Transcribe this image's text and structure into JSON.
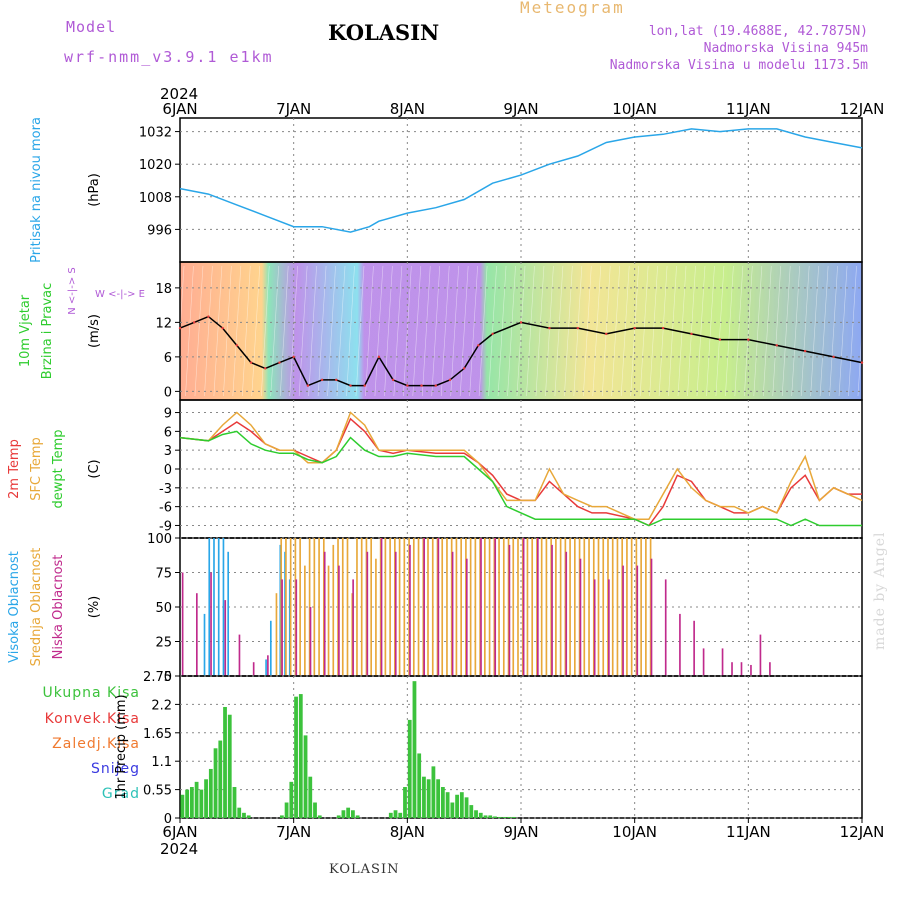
{
  "header": {
    "model_label": "Model",
    "model_name": "wrf-nmm_v3.9.1 e1km",
    "station": "KOLASIN",
    "title": "Meteogram",
    "lonlat": "lon,lat (19.4688E, 42.7875N)",
    "elevation": "Nadmorska Visina 945m",
    "elevation_model": "Nadmorska Visina u modelu 1173.5m",
    "year": "2024",
    "footer_station": "KOLASIN",
    "credit": "made by Angel"
  },
  "colors": {
    "pressure": "#2aa6e8",
    "temp_2m": "#e83a3a",
    "temp_sfc": "#e8a83a",
    "dewpoint": "#2ecc2e",
    "high_cloud": "#2aa6e8",
    "mid_cloud": "#e8a83a",
    "low_cloud": "#c02a8c",
    "total_precip": "#3cc23c",
    "conv_precip": "#e83a3a",
    "freezing_rain": "#f07a30",
    "snow": "#3a3ae0",
    "hail": "#2ec2b8",
    "wind_label": "#2ecc2e",
    "compass": "#b05ad6"
  },
  "x_axis": {
    "ticks": [
      "6JAN",
      "7JAN",
      "8JAN",
      "9JAN",
      "10JAN",
      "11JAN",
      "12JAN"
    ],
    "range_hours": [
      0,
      144
    ]
  },
  "chart_data": [
    {
      "type": "line",
      "id": "pressure",
      "ylabel_lines": [
        "Pritisak na nivou mora"
      ],
      "unit": "(hPa)",
      "ylim": [
        984,
        1037
      ],
      "yticks": [
        "996",
        "1008",
        "1020",
        "1032"
      ],
      "ytick_values": [
        996,
        1008,
        1020,
        1032
      ],
      "series": [
        {
          "x": [
            0,
            6,
            12,
            18,
            24,
            30,
            36,
            40,
            42,
            48,
            54,
            60,
            66,
            72,
            78,
            84,
            90,
            96,
            102,
            108,
            114,
            120,
            126,
            132,
            138,
            144
          ],
          "values": [
            1011,
            1009,
            1005,
            1001,
            997,
            997,
            995,
            997,
            999,
            1002,
            1004,
            1007,
            1013,
            1016,
            1020,
            1023,
            1028,
            1030,
            1031,
            1033,
            1032,
            1033,
            1033,
            1030,
            1028,
            1026
          ]
        }
      ]
    },
    {
      "type": "line",
      "id": "wind",
      "ylabel_lines": [
        "10m Vjetar",
        "Brzina i Pravac"
      ],
      "unit": "(m/s)",
      "ylim": [
        -1.5,
        22.5
      ],
      "yticks": [
        "0",
        "6",
        "12",
        "18"
      ],
      "ytick_values": [
        0,
        6,
        12,
        18
      ],
      "compass_text": "W <-|-> E",
      "compass_vertical": "N <-|-> S",
      "series": [
        {
          "x": [
            0,
            3,
            6,
            9,
            12,
            15,
            18,
            21,
            24,
            27,
            30,
            33,
            36,
            39,
            42,
            45,
            48,
            51,
            54,
            57,
            60,
            63,
            66,
            72,
            78,
            84,
            90,
            96,
            102,
            108,
            114,
            120,
            126,
            132,
            138,
            144
          ],
          "values": [
            11,
            12,
            13,
            11,
            8,
            5,
            4,
            5,
            6,
            1,
            2,
            2,
            1,
            1,
            6,
            2,
            1,
            1,
            1,
            2,
            4,
            8,
            10,
            12,
            11,
            11,
            10,
            11,
            11,
            10,
            9,
            9,
            8,
            7,
            6,
            5
          ]
        }
      ]
    },
    {
      "type": "line",
      "id": "temperature",
      "ylabel_lines": [
        "2m Temp",
        "SFC Temp",
        "dewpt Temp"
      ],
      "unit": "(C)",
      "ylim": [
        -11,
        11
      ],
      "yticks": [
        "-9",
        "-6",
        "-3",
        "0",
        "3",
        "6",
        "9"
      ],
      "ytick_values": [
        -9,
        -6,
        -3,
        0,
        3,
        6,
        9
      ],
      "series": [
        {
          "name": "2m Temp",
          "x": [
            0,
            6,
            9,
            12,
            15,
            18,
            21,
            24,
            27,
            30,
            33,
            36,
            39,
            42,
            45,
            48,
            54,
            60,
            63,
            66,
            69,
            72,
            75,
            78,
            81,
            84,
            87,
            90,
            96,
            99,
            102,
            105,
            108,
            111,
            114,
            117,
            120,
            123,
            126,
            129,
            132,
            135,
            138,
            141,
            144
          ],
          "values": [
            5,
            4.5,
            6,
            7.5,
            6,
            4,
            3,
            3,
            2,
            1,
            3,
            8,
            6,
            3,
            2.5,
            3,
            2.5,
            2.5,
            1,
            -1,
            -4,
            -5,
            -5,
            -2,
            -4,
            -6,
            -7,
            -7,
            -8,
            -9,
            -6,
            -1,
            -2,
            -5,
            -6,
            -7,
            -7,
            -6,
            -7,
            -3,
            -1,
            -5,
            -3,
            -4,
            -4
          ]
        },
        {
          "name": "SFC Temp",
          "x": [
            0,
            6,
            9,
            12,
            15,
            18,
            21,
            24,
            27,
            30,
            33,
            36,
            39,
            42,
            45,
            48,
            54,
            60,
            63,
            66,
            69,
            72,
            75,
            78,
            81,
            84,
            87,
            90,
            96,
            99,
            102,
            105,
            108,
            111,
            114,
            117,
            120,
            123,
            126,
            129,
            132,
            135,
            138,
            141,
            144
          ],
          "values": [
            5,
            4.5,
            7,
            9,
            7,
            4,
            3,
            3,
            1,
            1,
            3,
            9,
            7,
            3,
            3,
            3,
            3,
            3,
            1,
            -2,
            -5,
            -5,
            -5,
            0,
            -4,
            -5,
            -6,
            -6,
            -8,
            -8,
            -4,
            0,
            -3,
            -5,
            -6,
            -6,
            -7,
            -6,
            -7,
            -2,
            2,
            -5,
            -3,
            -4,
            -5
          ]
        },
        {
          "name": "dewpt Temp",
          "x": [
            0,
            6,
            9,
            12,
            15,
            18,
            21,
            24,
            27,
            30,
            33,
            36,
            39,
            42,
            45,
            48,
            54,
            60,
            63,
            66,
            69,
            72,
            75,
            78,
            81,
            84,
            87,
            90,
            96,
            99,
            102,
            105,
            108,
            111,
            114,
            117,
            120,
            123,
            126,
            129,
            132,
            135,
            138,
            141,
            144
          ],
          "values": [
            5,
            4.5,
            5.5,
            6,
            4,
            3,
            2.5,
            2.5,
            1.5,
            1,
            2,
            5,
            3,
            2,
            2,
            2.5,
            2,
            2,
            0,
            -2,
            -6,
            -7,
            -8,
            -8,
            -8,
            -8,
            -8,
            -8,
            -8,
            -9,
            -8,
            -8,
            -8,
            -8,
            -8,
            -8,
            -8,
            -8,
            -8,
            -9,
            -8,
            -9,
            -9,
            -9,
            -9
          ]
        }
      ]
    },
    {
      "type": "bar",
      "id": "cloud",
      "ylabel_lines": [
        "Visoka Oblacnost",
        "Srednja Oblacnost",
        "Niska Oblacnost"
      ],
      "unit": "(%)",
      "ylim": [
        0,
        100
      ],
      "yticks": [
        "0",
        "25",
        "50",
        "75",
        "100"
      ],
      "ytick_values": [
        0,
        25,
        50,
        75,
        100
      ],
      "series": [
        {
          "name": "Visoka Oblacnost",
          "x": [
            5,
            6,
            7,
            8,
            9,
            10,
            18,
            19,
            21,
            22,
            23
          ],
          "values": [
            45,
            100,
            100,
            100,
            100,
            90,
            12,
            40,
            95,
            90,
            70
          ]
        },
        {
          "name": "Srednja Oblacnost",
          "x": [
            20,
            21,
            22,
            23,
            24,
            25,
            26,
            27,
            28,
            29,
            30,
            31,
            32,
            33,
            34,
            35,
            36,
            37,
            38,
            39,
            40,
            41,
            42,
            43,
            44,
            45,
            46,
            47,
            48,
            49,
            50,
            51,
            52,
            53,
            54,
            55,
            56,
            57,
            58,
            59,
            60,
            61,
            62,
            63,
            64,
            65,
            66,
            67,
            68,
            69,
            70,
            71,
            72,
            73,
            74,
            75,
            76,
            77,
            78,
            79,
            80,
            81,
            82,
            83,
            84,
            85,
            86,
            87,
            88,
            89,
            90,
            91,
            92,
            93,
            94,
            95,
            96,
            97,
            98,
            99
          ],
          "values": [
            60,
            100,
            100,
            100,
            100,
            100,
            80,
            100,
            100,
            100,
            100,
            80,
            95,
            100,
            100,
            100,
            60,
            100,
            100,
            100,
            100,
            85,
            100,
            100,
            100,
            100,
            100,
            100,
            100,
            100,
            100,
            100,
            100,
            100,
            100,
            100,
            100,
            100,
            100,
            100,
            100,
            100,
            100,
            100,
            100,
            100,
            100,
            100,
            100,
            100,
            100,
            100,
            100,
            100,
            100,
            100,
            100,
            100,
            100,
            100,
            100,
            100,
            100,
            100,
            100,
            100,
            100,
            100,
            100,
            100,
            100,
            100,
            100,
            100,
            100,
            100,
            100,
            100,
            100,
            100
          ]
        },
        {
          "name": "Niska Oblacnost",
          "x": [
            0,
            3,
            6,
            9,
            12,
            15,
            18,
            21,
            24,
            27,
            30,
            33,
            36,
            39,
            42,
            45,
            48,
            51,
            54,
            57,
            60,
            63,
            66,
            69,
            72,
            75,
            78,
            81,
            84,
            87,
            90,
            93,
            96,
            99,
            102,
            105,
            108,
            110,
            114,
            116,
            118,
            120,
            122,
            124
          ],
          "values": [
            75,
            60,
            75,
            55,
            30,
            10,
            15,
            70,
            70,
            50,
            90,
            80,
            70,
            90,
            100,
            90,
            95,
            100,
            100,
            90,
            85,
            100,
            100,
            95,
            100,
            100,
            95,
            90,
            85,
            70,
            70,
            80,
            80,
            85,
            70,
            45,
            40,
            20,
            20,
            10,
            10,
            8,
            30,
            10
          ]
        }
      ]
    },
    {
      "type": "bar",
      "id": "precip",
      "ylabel_lines": [
        "1hr Precip (mm)"
      ],
      "unit": "(mm)",
      "ylim": [
        0,
        2.75
      ],
      "yticks": [
        "0",
        "0.55",
        "1.1",
        "1.65",
        "2.2",
        "2.75"
      ],
      "ytick_values": [
        0,
        0.55,
        1.1,
        1.65,
        2.2,
        2.75
      ],
      "legend": [
        "Ukupna Kisa",
        "Konvek.Kisa",
        "Zaledj.Kisa",
        "Snijeg",
        "Grad"
      ],
      "series": [
        {
          "name": "Ukupna Kisa",
          "x": [
            0,
            1,
            2,
            3,
            4,
            5,
            6,
            7,
            8,
            9,
            10,
            11,
            12,
            13,
            14,
            21,
            22,
            23,
            24,
            25,
            26,
            27,
            28,
            29,
            33,
            34,
            35,
            36,
            37,
            44,
            45,
            46,
            47,
            48,
            49,
            50,
            51,
            52,
            53,
            54,
            55,
            56,
            57,
            58,
            59,
            60,
            61,
            62,
            63,
            64,
            65,
            66,
            67,
            68,
            69,
            70
          ],
          "values": [
            0.45,
            0.55,
            0.6,
            0.7,
            0.55,
            0.75,
            0.95,
            1.35,
            1.5,
            2.15,
            2.0,
            0.6,
            0.2,
            0.1,
            0.05,
            0.05,
            0.3,
            0.7,
            2.35,
            2.4,
            1.6,
            0.8,
            0.3,
            0.05,
            0.05,
            0.15,
            0.2,
            0.15,
            0.05,
            0.1,
            0.15,
            0.1,
            0.6,
            1.9,
            2.65,
            1.25,
            0.8,
            0.75,
            1.0,
            0.75,
            0.6,
            0.5,
            0.3,
            0.45,
            0.5,
            0.4,
            0.25,
            0.15,
            0.1,
            0.05,
            0.05,
            0.03,
            0.02,
            0.02,
            0.02,
            0.02
          ]
        }
      ]
    }
  ]
}
